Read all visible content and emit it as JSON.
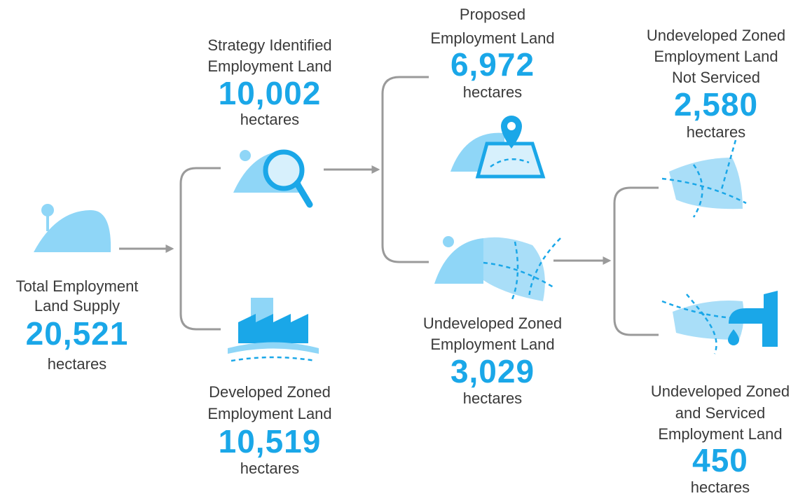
{
  "nodes": [
    {
      "label": [
        "Total Employment",
        "Land Supply"
      ],
      "value": "20,521",
      "unit": "hectares"
    },
    {
      "label": [
        "Strategy Identified",
        "Employment Land"
      ],
      "value": "10,002",
      "unit": "hectares"
    },
    {
      "label": [
        "Developed Zoned",
        "Employment Land"
      ],
      "value": "10,519",
      "unit": "hectares"
    },
    {
      "label": [
        "Proposed",
        "Employment Land"
      ],
      "value": "6,972",
      "unit": "hectares"
    },
    {
      "label": [
        "Undeveloped Zoned",
        "Employment Land"
      ],
      "value": "3,029",
      "unit": "hectares"
    },
    {
      "label": [
        "Undeveloped Zoned",
        "Employment Land",
        "Not Serviced"
      ],
      "value": "2,580",
      "unit": "hectares"
    },
    {
      "label": [
        "Undeveloped Zoned",
        "and Serviced",
        "Employment Land"
      ],
      "value": "450",
      "unit": "hectares"
    }
  ]
}
